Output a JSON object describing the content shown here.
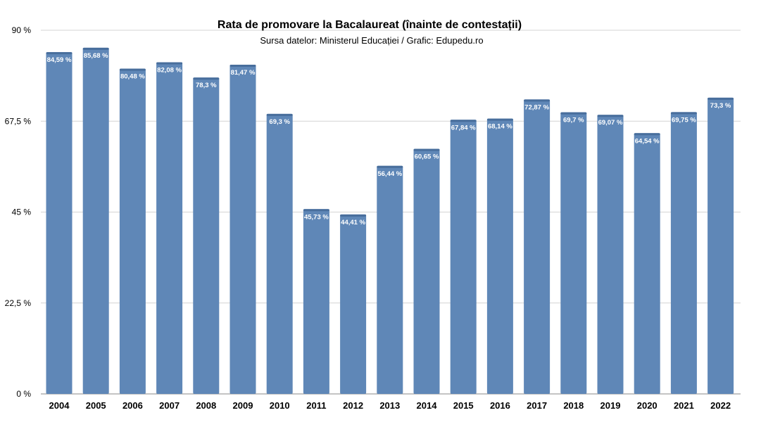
{
  "chart_data": {
    "type": "bar",
    "title": "Rata de promovare la Bacalaureat (înainte de contestații)",
    "subtitle": "Sursa datelor: Ministerul Educației / Grafic: Edupedu.ro",
    "categories": [
      "2004",
      "2005",
      "2006",
      "2007",
      "2008",
      "2009",
      "2010",
      "2011",
      "2012",
      "2013",
      "2014",
      "2015",
      "2016",
      "2017",
      "2018",
      "2019",
      "2020",
      "2021",
      "2022"
    ],
    "values": [
      84.59,
      85.68,
      80.48,
      82.08,
      78.3,
      81.47,
      69.3,
      45.73,
      44.41,
      56.44,
      60.65,
      67.84,
      68.14,
      72.87,
      69.7,
      69.07,
      64.54,
      69.75,
      73.3
    ],
    "data_labels": [
      "84,59 %",
      "85,68 %",
      "80,48 %",
      "82,08 %",
      "78,3 %",
      "81,47 %",
      "69,3 %",
      "45,73 %",
      "44,41 %",
      "56,44 %",
      "60,65 %",
      "67,84 %",
      "68,14 %",
      "72,87 %",
      "69,7 %",
      "69,07 %",
      "64,54 %",
      "69,75 %",
      "73,3 %"
    ],
    "yticks": [
      0,
      22.5,
      45,
      67.5,
      90
    ],
    "ytick_labels": [
      "0 %",
      "22,5 %",
      "45 %",
      "67,5 %",
      "90 %"
    ],
    "ylim": [
      0,
      90
    ],
    "xlabel": "",
    "ylabel": "",
    "grid": true,
    "legend": "none",
    "colors": {
      "bar": "#5f87b7",
      "bar_top": "#486e9c",
      "grid": "#d4d4d4"
    }
  }
}
